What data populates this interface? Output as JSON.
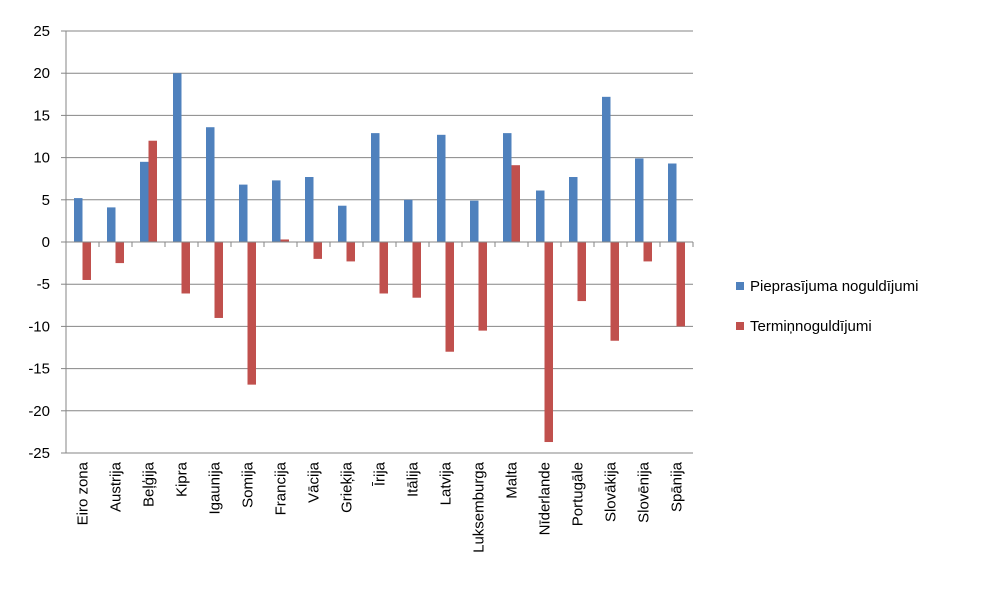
{
  "chart_data": {
    "type": "bar",
    "title": "",
    "xlabel": "",
    "ylabel": "",
    "ylim": [
      -25,
      25
    ],
    "yticks": [
      25,
      20,
      15,
      10,
      5,
      0,
      -5,
      -10,
      -15,
      -20,
      -25
    ],
    "grid": true,
    "legend_position": "right",
    "categories": [
      "Eiro zona",
      "Austrija",
      "Beļģija",
      "Kipra",
      "Igaunija",
      "Somija",
      "Francija",
      "Vācija",
      "Grieķija",
      "Īrija",
      "Itālija",
      "Latvija",
      "Luksemburga",
      "Malta",
      "Nīderlande",
      "Portugāle",
      "Slovākija",
      "Slovēnija",
      "Spānija"
    ],
    "series": [
      {
        "name": "Pieprasījuma noguldījumi",
        "color": "#4F81BD",
        "values": [
          5.2,
          4.1,
          9.5,
          20.0,
          13.6,
          6.8,
          7.3,
          7.7,
          4.3,
          12.9,
          5.0,
          12.7,
          4.9,
          12.9,
          6.1,
          7.7,
          17.2,
          9.9,
          9.3
        ]
      },
      {
        "name": "Termiņnoguldījumi",
        "color": "#C0504D",
        "values": [
          -4.5,
          -2.5,
          12.0,
          -6.1,
          -9.0,
          -16.9,
          0.3,
          -2.0,
          -2.3,
          -6.1,
          -6.6,
          -13.0,
          -10.5,
          9.1,
          -23.7,
          -7.0,
          -11.7,
          -2.3,
          -10.0
        ]
      }
    ]
  }
}
